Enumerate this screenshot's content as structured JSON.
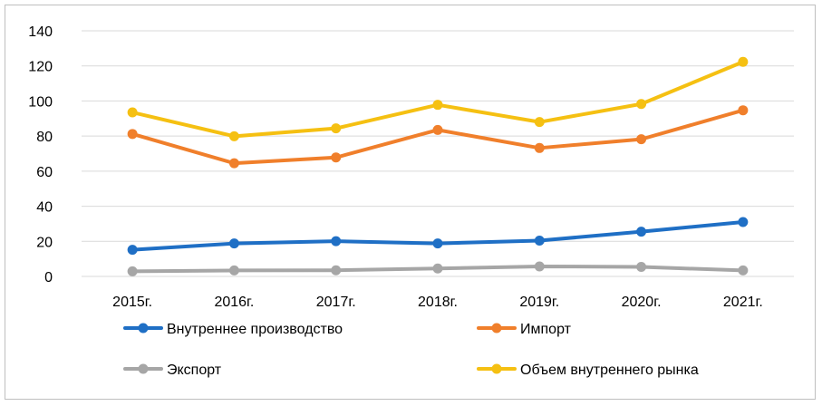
{
  "chart_data": {
    "type": "line",
    "categories": [
      "2015г.",
      "2016г.",
      "2017г.",
      "2018г.",
      "2019г.",
      "2020г.",
      "2021г."
    ],
    "ylim": [
      0,
      140
    ],
    "yticks": [
      0,
      20,
      40,
      60,
      80,
      100,
      120,
      140
    ],
    "grid": true,
    "legend_placement": "bottom",
    "series": [
      {
        "name": "Внутреннее производство",
        "color": "#1f6fc5",
        "values": [
          15.2,
          18.8,
          20.1,
          18.8,
          20.4,
          25.5,
          31.0
        ]
      },
      {
        "name": "Импорт",
        "color": "#f07f2b",
        "values": [
          81.2,
          64.5,
          67.8,
          83.5,
          73.2,
          78.2,
          94.7
        ]
      },
      {
        "name": "Экспорт",
        "color": "#a6a6a6",
        "values": [
          2.9,
          3.4,
          3.5,
          4.5,
          5.7,
          5.4,
          3.4
        ]
      },
      {
        "name": "Объем внутреннего рынка",
        "color": "#f5c012",
        "values": [
          93.5,
          79.9,
          84.4,
          97.8,
          88.0,
          98.3,
          122.3
        ]
      }
    ]
  }
}
